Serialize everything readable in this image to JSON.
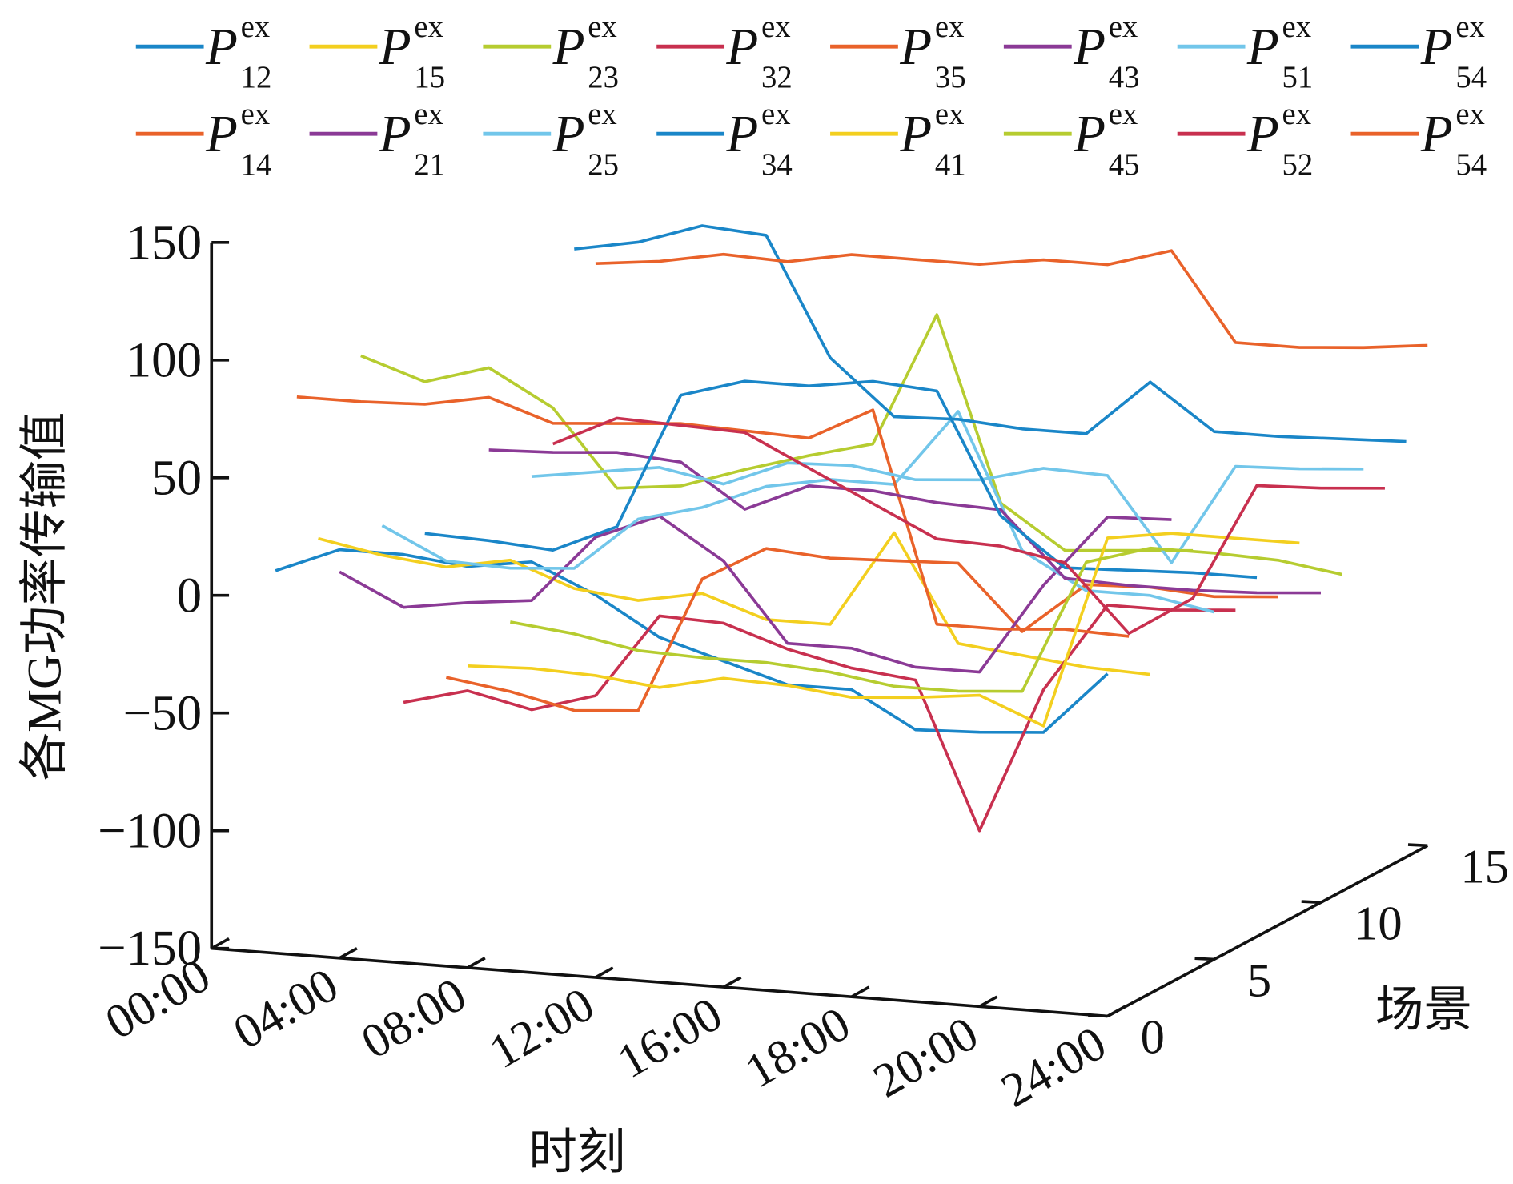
{
  "chart_data": {
    "type": "line3d",
    "ylabel": "各MG功率传输值",
    "xlabel": "时刻",
    "zlabel": "场景",
    "x": [
      0,
      0.5,
      1,
      1.5,
      2,
      2.5,
      3,
      3.5,
      4,
      4.5,
      5,
      5.5,
      6,
      6.5
    ],
    "xlim": [
      0,
      7
    ],
    "xticks": [
      {
        "value": 0,
        "label": "00:00"
      },
      {
        "value": 1,
        "label": "04:00"
      },
      {
        "value": 2,
        "label": "08:00"
      },
      {
        "value": 3,
        "label": "12:00"
      },
      {
        "value": 4,
        "label": "16:00"
      },
      {
        "value": 5,
        "label": "18:00"
      },
      {
        "value": 6,
        "label": "20:00"
      },
      {
        "value": 7,
        "label": "24:00"
      }
    ],
    "ylim": [
      -150,
      150
    ],
    "yticks": [
      {
        "value": -150,
        "label": "−150"
      },
      {
        "value": -100,
        "label": "−100"
      },
      {
        "value": -50,
        "label": "−50"
      },
      0,
      50,
      100,
      150
    ],
    "zlim": [
      0,
      15
    ],
    "zticks": [
      0,
      5,
      10,
      15
    ],
    "series": [
      {
        "name": {
          "symbol": "P",
          "sup": "ex",
          "sub": "12"
        },
        "color": "#1a86c8",
        "z": 3,
        "values": [
          -4,
          7,
          7,
          4,
          8,
          -4,
          -20,
          -28,
          -36,
          -36,
          -51,
          -50,
          -48,
          -21
        ]
      },
      {
        "name": {
          "symbol": "P",
          "sup": "ex",
          "sub": "15"
        },
        "color": "#f3cf1f",
        "z": 5,
        "values": [
          0,
          -5,
          -8,
          -3,
          -13,
          -16,
          -11,
          -20,
          -20,
          21,
          -24,
          -27,
          -30,
          -31
        ]
      },
      {
        "name": {
          "symbol": "P",
          "sup": "ex",
          "sub": "23"
        },
        "color": "#b6cc30",
        "z": 7,
        "values": [
          68,
          59,
          67,
          52,
          20,
          23,
          32,
          40,
          47,
          104,
          26,
          8,
          10,
          12
        ]
      },
      {
        "name": {
          "symbol": "P",
          "sup": "ex",
          "sub": "32"
        },
        "color": "#c8304f",
        "z": 9,
        "values": [
          -89,
          -82,
          -88,
          -80,
          -44,
          -45,
          -54,
          -60,
          -63,
          -125,
          -63,
          -25,
          -25,
          -23
        ]
      },
      {
        "name": {
          "symbol": "P",
          "sup": "ex",
          "sub": "35"
        },
        "color": "#e9622a",
        "z": 11,
        "values": [
          -88,
          -92,
          -98,
          -96,
          -38,
          -23,
          -25,
          -24,
          -23,
          -50,
          -28,
          -27,
          -29,
          -27
        ]
      },
      {
        "name": {
          "symbol": "P",
          "sup": "ex",
          "sub": "43"
        },
        "color": "#8b3a96",
        "z": 6,
        "values": [
          -19,
          -32,
          -28,
          -25,
          4,
          15,
          -2,
          -35,
          -35,
          -41,
          -41,
          -2,
          29,
          30
        ]
      },
      {
        "name": {
          "symbol": "P",
          "sup": "ex",
          "sub": "51"
        },
        "color": "#72c6ea",
        "z": 8,
        "values": [
          -9,
          -22,
          -23,
          -21,
          2,
          9,
          20,
          25,
          25,
          58,
          1,
          -14,
          -14,
          -19
        ]
      },
      {
        "name": {
          "symbol": "P",
          "sup": "ex",
          "sub": "54"
        },
        "color": "#1a86c8",
        "z": 17,
        "values": [
          65,
          70,
          79,
          77,
          27,
          4,
          5,
          3,
          3,
          27,
          8,
          8,
          9,
          10
        ]
      },
      {
        "name": {
          "symbol": "P",
          "sup": "ex",
          "sub": "14"
        },
        "color": "#e9622a",
        "z": 4,
        "values": [
          65,
          65,
          66,
          71,
          62,
          64,
          66,
          65,
          64,
          78,
          -11,
          -11,
          -9,
          -10
        ]
      },
      {
        "name": {
          "symbol": "P",
          "sup": "ex",
          "sub": "21"
        },
        "color": "#8b3a96",
        "z": 13,
        "values": [
          -1,
          0,
          2,
          0,
          -18,
          -6,
          -6,
          -9,
          -10,
          -37,
          -38,
          -38,
          -37,
          -35
        ]
      },
      {
        "name": {
          "symbol": "P",
          "sup": "ex",
          "sub": "25"
        },
        "color": "#72c6ea",
        "z": 15,
        "values": [
          -22,
          -18,
          -14,
          -19,
          -8,
          -7,
          -11,
          -9,
          -2,
          -3,
          -38,
          5,
          6,
          8
        ]
      },
      {
        "name": {
          "symbol": "P",
          "sup": "ex",
          "sub": "34"
        },
        "color": "#1a86c8",
        "z": 10,
        "values": [
          -22,
          -23,
          -25,
          -13,
          45,
          53,
          53,
          57,
          55,
          4,
          -16,
          -15,
          -14,
          -14
        ]
      },
      {
        "name": {
          "symbol": "P",
          "sup": "ex",
          "sub": "41"
        },
        "color": "#f3cf1f",
        "z": 12,
        "values": [
          -88,
          -87,
          -88,
          -91,
          -85,
          -86,
          -89,
          -87,
          -84,
          -95,
          -13,
          -9,
          -9,
          -9
        ]
      },
      {
        "name": {
          "symbol": "P",
          "sup": "ex",
          "sub": "45"
        },
        "color": "#b6cc30",
        "z": 14,
        "values": [
          -79,
          -82,
          -87,
          -88,
          -88,
          -90,
          -94,
          -94,
          -92,
          -35,
          -27,
          -27,
          -28,
          -32
        ]
      },
      {
        "name": {
          "symbol": "P",
          "sup": "ex",
          "sub": "52"
        },
        "color": "#c8304f",
        "z": 16,
        "values": [
          -13,
          0,
          -1,
          -2,
          -15,
          -28,
          -41,
          -42,
          -47,
          -75,
          -58,
          -8,
          -7,
          -5
        ]
      },
      {
        "name": {
          "symbol": "P",
          "sup": "ex",
          "sub": "54"
        },
        "color": "#e9622a",
        "z": 18,
        "values": [
          54,
          57,
          62,
          61,
          66,
          66,
          66,
          70,
          70,
          78,
          41,
          41,
          43,
          46
        ]
      }
    ]
  }
}
